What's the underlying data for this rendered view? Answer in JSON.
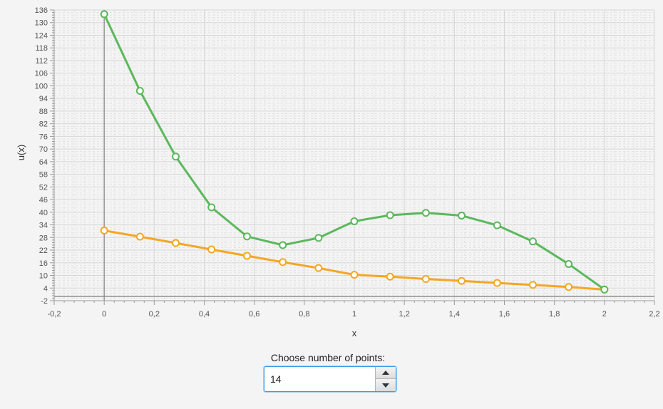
{
  "chart_data": {
    "type": "line",
    "xlabel": "x",
    "ylabel": "u(x)",
    "xlim": [
      -0.2,
      2.2
    ],
    "ylim": [
      -2,
      136
    ],
    "x_ticks": [
      "-0,2",
      "0",
      "0,2",
      "0,4",
      "0,6",
      "0,8",
      "1",
      "1,2",
      "1,4",
      "1,6",
      "1,8",
      "2",
      "2,2"
    ],
    "y_ticks": [
      "-2",
      "4",
      "10",
      "16",
      "22",
      "28",
      "34",
      "40",
      "46",
      "52",
      "58",
      "64",
      "70",
      "76",
      "82",
      "88",
      "94",
      "100",
      "106",
      "112",
      "118",
      "124",
      "130",
      "136"
    ],
    "grid": true,
    "series": [
      {
        "color": "#5cb85c",
        "x": [
          0,
          0.143,
          0.286,
          0.429,
          0.571,
          0.714,
          0.857,
          1.0,
          1.143,
          1.286,
          1.429,
          1.571,
          1.714,
          1.857,
          2.0
        ],
        "values": [
          134,
          97.6,
          66.4,
          42.3,
          28.5,
          24.4,
          27.8,
          35.7,
          38.6,
          39.7,
          38.4,
          33.8,
          26.1,
          15.4,
          3.3
        ]
      },
      {
        "color": "#f5a623",
        "x": [
          0,
          0.143,
          0.286,
          0.429,
          0.571,
          0.714,
          0.857,
          1.0,
          1.143,
          1.286,
          1.429,
          1.571,
          1.714,
          1.857,
          2.0
        ],
        "values": [
          31.3,
          28.4,
          25.4,
          22.3,
          19.3,
          16.3,
          13.5,
          10.3,
          9.4,
          8.3,
          7.4,
          6.4,
          5.5,
          4.5,
          3.3
        ]
      }
    ]
  },
  "controls": {
    "label": "Choose number of points:",
    "points_value": "14"
  }
}
